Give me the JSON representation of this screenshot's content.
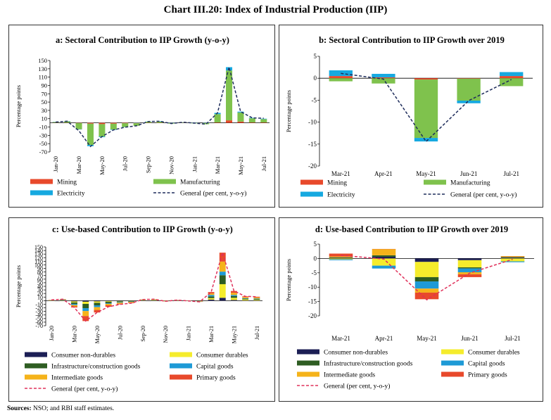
{
  "title": "Chart III.20: Index of Industrial Production (IIP)",
  "source": {
    "label": "Sources:",
    "text": " NSO; and RBI staff estimates."
  },
  "chart_data": [
    {
      "id": "a",
      "type": "bar",
      "stacked": true,
      "title": "a: Sectoral Contribution to IIP Growth (y-o-y)",
      "ylabel": "Percentage points",
      "ylim": [
        -70,
        150
      ],
      "yticks": [
        -70,
        -50,
        -30,
        -10,
        10,
        30,
        50,
        70,
        90,
        110,
        130,
        150
      ],
      "yticklabels": [
        "-70",
        "-50",
        "-30",
        "-10",
        "10",
        "30",
        "50",
        "70",
        "90",
        "110",
        "130",
        "150"
      ],
      "categories": [
        "Jan-20",
        "Feb-20",
        "Mar-20",
        "Apr-20",
        "May-20",
        "Jun-20",
        "Jul-20",
        "Aug-20",
        "Sep-20",
        "Oct-20",
        "Nov-20",
        "Dec-20",
        "Jan-21",
        "Feb-21",
        "Mar-21",
        "Apr-21",
        "May-21",
        "Jun-21",
        "Jul-21"
      ],
      "xticklabels": [
        "Jan-20",
        "Mar-20",
        "May-20",
        "Jul-20",
        "Sep-20",
        "Nov-20",
        "Jan-21",
        "Mar-21",
        "May-21",
        "Jul-21"
      ],
      "series": [
        {
          "name": "Mining",
          "color": "#e8492b",
          "values": [
            0.5,
            0.5,
            -0.5,
            -2,
            -3,
            -2,
            -1,
            -1,
            0.2,
            0.1,
            -0.3,
            0,
            -0.2,
            -0.3,
            1,
            6,
            3,
            1,
            1
          ]
        },
        {
          "name": "Manufacturing",
          "color": "#7fc24d",
          "values": [
            1.5,
            3,
            -15,
            -51,
            -30,
            -14,
            -9,
            -6,
            2.5,
            3,
            -1.5,
            1,
            -1,
            -3,
            20,
            120,
            22,
            10,
            8
          ]
        },
        {
          "name": "Electricity",
          "color": "#16a9e0",
          "values": [
            0.2,
            0.5,
            -0.2,
            -3,
            -1.5,
            -1,
            -0.5,
            0.3,
            0.4,
            1,
            0.2,
            0.3,
            0.5,
            0.2,
            3,
            8,
            2,
            1,
            1
          ]
        }
      ],
      "line": {
        "name": "General (per cent, y-o-y)",
        "color": "#1f2d5c",
        "dashed": true,
        "values": [
          2,
          4,
          -19,
          -57,
          -33,
          -17,
          -10.5,
          -7,
          3.3,
          4,
          -1.6,
          1.6,
          -0.6,
          -3.4,
          24,
          134,
          27,
          12,
          11
        ]
      },
      "legend": [
        "Mining",
        "Manufacturing",
        "Electricity",
        "General (per cent, y-o-y)"
      ]
    },
    {
      "id": "b",
      "type": "bar",
      "stacked": true,
      "title": "b: Sectoral Contribution to IIP Growth over 2019",
      "ylabel": "Percentage points",
      "ylim": [
        -20,
        5
      ],
      "yticks": [
        5,
        0,
        -5,
        -10,
        -15,
        -20
      ],
      "yticklabels": [
        "5",
        "0",
        "-5",
        "-10",
        "-15",
        "-20"
      ],
      "categories": [
        "Mar-21",
        "Apr-21",
        "May-21",
        "Jun-21",
        "Jul-21"
      ],
      "xticklabels": [
        "Mar-21",
        "Apr-21",
        "May-21",
        "Jun-21",
        "Jul-21"
      ],
      "series": [
        {
          "name": "Mining",
          "color": "#e8492b",
          "values": [
            0.5,
            0.2,
            -0.3,
            -0.1,
            0.5
          ]
        },
        {
          "name": "Manufacturing",
          "color": "#7fc24d",
          "values": [
            -0.7,
            -1.2,
            -13.3,
            -5,
            -1.8
          ]
        },
        {
          "name": "Electricity",
          "color": "#16a9e0",
          "values": [
            1.3,
            0.8,
            -0.8,
            -0.6,
            0.9
          ]
        }
      ],
      "line": {
        "name": "General (per cent, y-o-y)",
        "color": "#1f2d5c",
        "dashed": true,
        "values": [
          1.1,
          -0.2,
          -14.4,
          -5.1,
          -0.3
        ]
      },
      "legend": [
        "Mining",
        "Manufacturing",
        "Electricity",
        "General (per cent, y-o-y)"
      ]
    },
    {
      "id": "c",
      "type": "bar",
      "stacked": true,
      "title": "c: Use-based Contribution to IIP Growth (y-o-y)",
      "ylabel": "Percentage points",
      "ylim": [
        -70,
        150
      ],
      "yticks": [
        -70,
        -60,
        -50,
        -40,
        -30,
        -20,
        -10,
        0,
        10,
        20,
        30,
        40,
        50,
        60,
        70,
        80,
        90,
        100,
        110,
        120,
        130,
        140,
        150
      ],
      "yticklabels": [
        "-70",
        "-60",
        "-50",
        "-40",
        "-30",
        "-20",
        "-10",
        "0",
        "10",
        "20",
        "30",
        "40",
        "50",
        "60",
        "70",
        "80",
        "90",
        "100",
        "110",
        "120",
        "130",
        "140",
        "150"
      ],
      "categories": [
        "Jan-20",
        "Feb-20",
        "Mar-20",
        "Apr-20",
        "May-20",
        "Jun-20",
        "Jul-20",
        "Aug-20",
        "Sep-20",
        "Oct-20",
        "Nov-20",
        "Dec-20",
        "Jan-21",
        "Feb-21",
        "Mar-21",
        "Apr-21",
        "May-21",
        "Jun-21",
        "Jul-21"
      ],
      "xticklabels": [
        "Jan-20",
        "Mar-20",
        "May-20",
        "Jul-20",
        "Sep-20",
        "Nov-20",
        "Jan-21",
        "Mar-21",
        "May-21",
        "Jul-21"
      ],
      "series": [
        {
          "name": "Consumer non-durables",
          "color": "#1c1f55",
          "values": [
            0.5,
            1,
            -2,
            -3,
            -2,
            -1,
            -1,
            -0.5,
            0.5,
            0.5,
            0.5,
            0.5,
            0.2,
            -0.5,
            3,
            8,
            2,
            0.5,
            0.5
          ]
        },
        {
          "name": "Consumer durables",
          "color": "#f5ec2c",
          "values": [
            0,
            -0.2,
            -3,
            -6,
            -4,
            -2,
            -1,
            -0.5,
            1,
            1.5,
            0.2,
            0.3,
            0,
            -0.3,
            4,
            38,
            6,
            3,
            2
          ]
        },
        {
          "name": "Infrastructure/construction  goods",
          "color": "#2e5d22",
          "values": [
            0.5,
            1,
            -4,
            -12,
            -7,
            -4,
            -2,
            -1.5,
            0.5,
            0.5,
            -0.5,
            0.5,
            0.2,
            -0.5,
            5,
            25,
            5,
            2,
            2
          ]
        },
        {
          "name": "Capital goods",
          "color": "#1e9ad6",
          "values": [
            0.2,
            0.5,
            -3,
            -8,
            -5,
            -2,
            -1.5,
            -1,
            0.3,
            0.5,
            -0.3,
            0.3,
            0,
            -0.5,
            4,
            10,
            3,
            1.5,
            1.5
          ]
        },
        {
          "name": "Intermediate goods",
          "color": "#f5b31a",
          "values": [
            0.3,
            1,
            -4,
            -14,
            -8,
            -4,
            -3,
            -2,
            0.5,
            0.5,
            -0.5,
            0,
            -0.4,
            -1,
            4,
            28,
            6,
            3,
            3
          ]
        },
        {
          "name": "Primary goods",
          "color": "#e8492b",
          "values": [
            0.5,
            0.7,
            -3,
            -14,
            -7,
            -4,
            -2,
            -1.5,
            0.5,
            0.5,
            -0.5,
            0,
            -0.6,
            -0.6,
            4,
            25,
            5,
            2,
            2
          ]
        }
      ],
      "line": {
        "name": "General (per cent, y-o-y)",
        "color": "#e0305a",
        "dashed": true,
        "values": [
          2,
          4,
          -19,
          -57,
          -33,
          -17,
          -10.5,
          -7,
          3.3,
          4,
          -1.6,
          1.6,
          -0.6,
          -3.4,
          24,
          134,
          27,
          12,
          11
        ]
      },
      "legend": [
        "Consumer non-durables",
        "Consumer durables",
        "Infrastructure/construction  goods",
        "Capital goods",
        "Intermediate goods",
        "Primary goods",
        "General (per cent, y-o-y)"
      ]
    },
    {
      "id": "d",
      "type": "bar",
      "stacked": true,
      "title": "d: Use-based Contribution to IIP Growth over 2019",
      "ylabel": "Percentage points",
      "ylim": [
        -20,
        5
      ],
      "yticks": [
        5,
        0,
        -5,
        -10,
        -15,
        -20
      ],
      "yticklabels": [
        "5",
        "0",
        "-5",
        "-10",
        "-15",
        "-20"
      ],
      "categories": [
        "Mar-21",
        "Apr-21",
        "May-21",
        "Jun-21",
        "Jul-21"
      ],
      "xticklabels": [
        "Mar-21",
        "Apr-21",
        "May-21",
        "Jun-21",
        "Jul-21"
      ],
      "series": [
        {
          "name": "Consumer non-durables",
          "color": "#1c1f55",
          "values": [
            0.2,
            0.6,
            -1.2,
            -0.6,
            0.3
          ]
        },
        {
          "name": "Consumer durables",
          "color": "#f5ec2c",
          "values": [
            -0.3,
            -2.5,
            -5.3,
            -2.5,
            -1
          ]
        },
        {
          "name": "Infrastructure/construction  goods",
          "color": "#2e5d22",
          "values": [
            0.2,
            0.5,
            -1.5,
            -0.4,
            0.2
          ]
        },
        {
          "name": "Capital goods",
          "color": "#1e9ad6",
          "values": [
            -0.3,
            -1,
            -2.5,
            -1.3,
            -0.3
          ]
        },
        {
          "name": "Intermediate goods",
          "color": "#f5b31a",
          "values": [
            0.3,
            2.2,
            -1.4,
            -0.7,
            0.3
          ]
        },
        {
          "name": "Primary goods",
          "color": "#e8492b",
          "values": [
            1,
            0,
            -2.3,
            -1,
            0
          ]
        }
      ],
      "line": {
        "name": "General (per cent, y-o-y)",
        "color": "#e0305a",
        "dashed": true,
        "values": [
          1.1,
          -0.2,
          -14.4,
          -5.1,
          -0.3
        ]
      },
      "legend": [
        "Consumer non-durables",
        "Consumer durables",
        "Infrastructure/construction  goods",
        "Capital goods",
        "Intermediate goods",
        "Primary goods",
        "General (per cent, y-o-y)"
      ]
    }
  ]
}
